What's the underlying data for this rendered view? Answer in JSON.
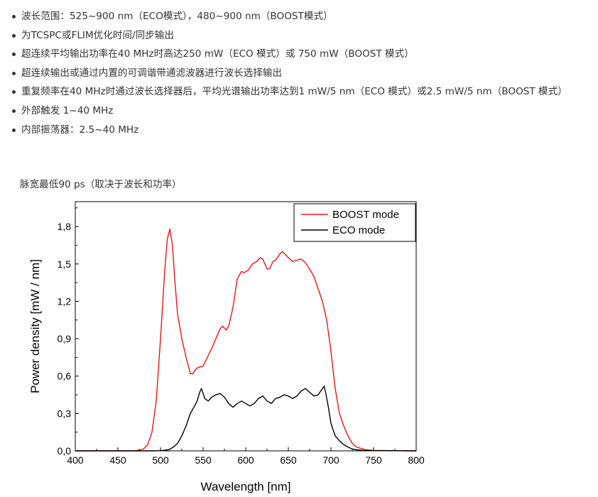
{
  "features": [
    "波长范围：525~900 nm（ECO模式），480~900 nm（BOOST模式）",
    "为TCSPC或FLIM优化时间/同步输出",
    "超连续平均输出功率在40 MHz时高达250 mW（ECO 模式）或 750 mW（BOOST 模式）",
    "超连续输出或通过内置的可调谐带通滤波器进行波长选择输出",
    "重复频率在40 MHz时通过波长选择器后，平均光谱输出功率达到1 mW/5 nm（ECO 模式）或2.5 mW/5 nm（BOOST 模式）",
    "外部触发 1~40 MHz",
    "内部振荡器：2.5~40 MHz"
  ],
  "caption": "脉宽最低90 ps（取决于波长和功率）",
  "chart_data": {
    "type": "line",
    "xlabel": "Wavelength [nm]",
    "ylabel": "Power density [mW / nm]",
    "xlim": [
      400,
      800
    ],
    "ylim": [
      0,
      2.0
    ],
    "x_ticks": [
      400,
      450,
      500,
      550,
      600,
      650,
      700,
      750,
      800
    ],
    "x_tick_labels": [
      "400",
      "450",
      "500",
      "550",
      "600",
      "650",
      "700",
      "750",
      "800"
    ],
    "y_ticks": [
      0,
      0.3,
      0.6,
      0.9,
      1.2,
      1.5,
      1.8
    ],
    "y_tick_labels": [
      "0,0",
      "0,3",
      "0,6",
      "0,9",
      "1,2",
      "1,5",
      "1,8"
    ],
    "grid": false,
    "legend_position": "top-right",
    "series": [
      {
        "name": "BOOST mode",
        "color": "#e8141c",
        "x": [
          400,
          460,
          470,
          475,
          480,
          485,
          490,
          495,
          500,
          505,
          508,
          511,
          514,
          517,
          520,
          525,
          530,
          535,
          538,
          542,
          545,
          550,
          555,
          560,
          565,
          570,
          573,
          577,
          580,
          585,
          590,
          595,
          598,
          603,
          608,
          613,
          617,
          620,
          625,
          628,
          632,
          635,
          640,
          643,
          646,
          650,
          655,
          660,
          665,
          670,
          675,
          680,
          685,
          690,
          695,
          700,
          705,
          710,
          715,
          720,
          725,
          730,
          740,
          750,
          800
        ],
        "y": [
          0,
          0,
          0.002,
          0.005,
          0.015,
          0.05,
          0.15,
          0.4,
          0.9,
          1.45,
          1.7,
          1.78,
          1.65,
          1.35,
          1.1,
          0.9,
          0.75,
          0.62,
          0.62,
          0.66,
          0.67,
          0.68,
          0.75,
          0.82,
          0.9,
          0.98,
          1.0,
          0.97,
          1.0,
          1.15,
          1.38,
          1.44,
          1.43,
          1.45,
          1.5,
          1.52,
          1.55,
          1.54,
          1.46,
          1.46,
          1.52,
          1.53,
          1.58,
          1.6,
          1.58,
          1.55,
          1.52,
          1.53,
          1.54,
          1.51,
          1.46,
          1.4,
          1.3,
          1.2,
          1.05,
          0.8,
          0.5,
          0.3,
          0.2,
          0.12,
          0.06,
          0.03,
          0.01,
          0.003,
          0
        ]
      },
      {
        "name": "ECO mode",
        "color": "#000000",
        "x": [
          400,
          490,
          500,
          505,
          510,
          515,
          520,
          525,
          530,
          535,
          540,
          543,
          546,
          548,
          552,
          556,
          560,
          565,
          570,
          575,
          580,
          585,
          590,
          595,
          600,
          605,
          610,
          615,
          620,
          625,
          630,
          635,
          640,
          645,
          650,
          655,
          660,
          665,
          670,
          675,
          680,
          685,
          690,
          692,
          694,
          697,
          700,
          705,
          710,
          715,
          720,
          725,
          730,
          740,
          800
        ],
        "y": [
          0,
          0,
          0.002,
          0.005,
          0.01,
          0.03,
          0.06,
          0.12,
          0.2,
          0.3,
          0.36,
          0.4,
          0.47,
          0.5,
          0.42,
          0.4,
          0.43,
          0.45,
          0.46,
          0.43,
          0.38,
          0.35,
          0.38,
          0.4,
          0.38,
          0.36,
          0.38,
          0.42,
          0.44,
          0.4,
          0.38,
          0.42,
          0.43,
          0.45,
          0.44,
          0.42,
          0.44,
          0.48,
          0.5,
          0.47,
          0.44,
          0.45,
          0.5,
          0.52,
          0.46,
          0.35,
          0.22,
          0.12,
          0.08,
          0.05,
          0.03,
          0.015,
          0.008,
          0.003,
          0
        ]
      }
    ]
  }
}
